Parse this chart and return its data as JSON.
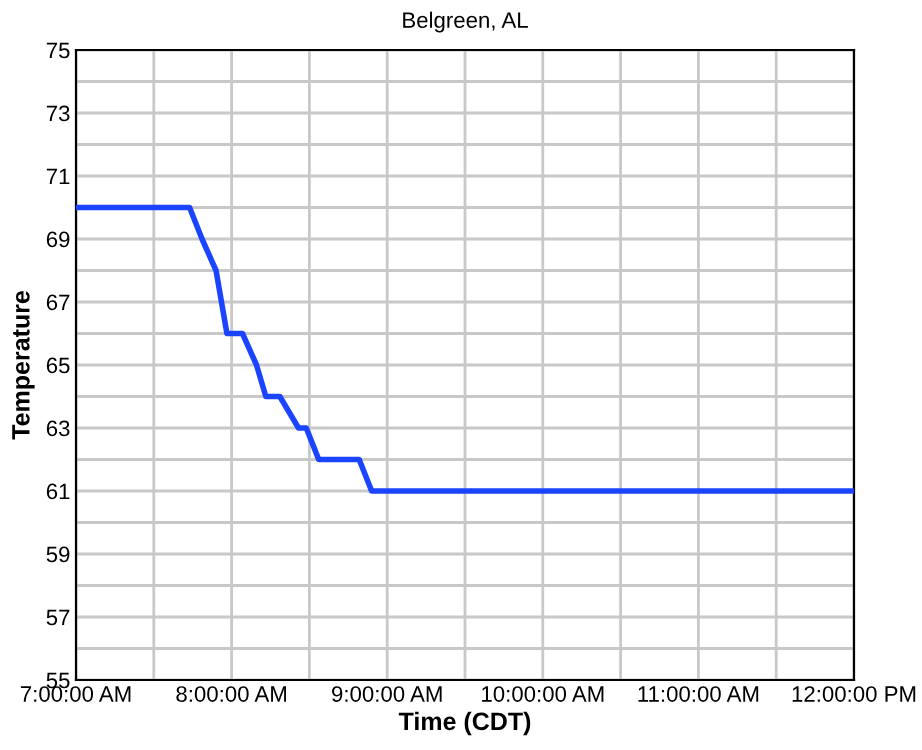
{
  "chart_data": {
    "type": "line",
    "title": "Belgreen, AL",
    "xlabel": "Time (CDT)",
    "ylabel": "Temperature",
    "series": [
      {
        "color": "#1a44ff",
        "x": [
          7,
          7.73,
          7.81,
          7.9,
          7.97,
          8.07,
          8.16,
          8.22,
          8.31,
          8.43,
          8.48,
          8.56,
          8.82,
          8.9,
          12
        ],
        "values": [
          70,
          70,
          69,
          68,
          66,
          66,
          65,
          64,
          64,
          63,
          63,
          62,
          62,
          61,
          61
        ]
      }
    ],
    "xlim": [
      7,
      12
    ],
    "xticks": [
      {
        "value": 7,
        "label": "7:00:00 AM"
      },
      {
        "value": 7.5,
        "label": null
      },
      {
        "value": 8,
        "label": "8:00:00 AM"
      },
      {
        "value": 8.5,
        "label": null
      },
      {
        "value": 9,
        "label": "9:00:00 AM"
      },
      {
        "value": 9.5,
        "label": null
      },
      {
        "value": 10,
        "label": "10:00:00 AM"
      },
      {
        "value": 10.5,
        "label": null
      },
      {
        "value": 11,
        "label": "11:00:00 AM"
      },
      {
        "value": 11.5,
        "label": null
      },
      {
        "value": 12,
        "label": "12:00:00 PM"
      }
    ],
    "ylim": [
      55,
      75
    ],
    "yticks": [
      55,
      {
        "value": 56,
        "label": null
      },
      57,
      {
        "value": 58,
        "label": null
      },
      59,
      {
        "value": 60,
        "label": null
      },
      61,
      {
        "value": 62,
        "label": null
      },
      63,
      {
        "value": 64,
        "label": null
      },
      65,
      {
        "value": 66,
        "label": null
      },
      67,
      {
        "value": 68,
        "label": null
      },
      69,
      {
        "value": 70,
        "label": null
      },
      71,
      {
        "value": 72,
        "label": null
      },
      73,
      {
        "value": 74,
        "label": null
      },
      75
    ],
    "grid": true,
    "line_style": "solid",
    "marker": "none"
  }
}
